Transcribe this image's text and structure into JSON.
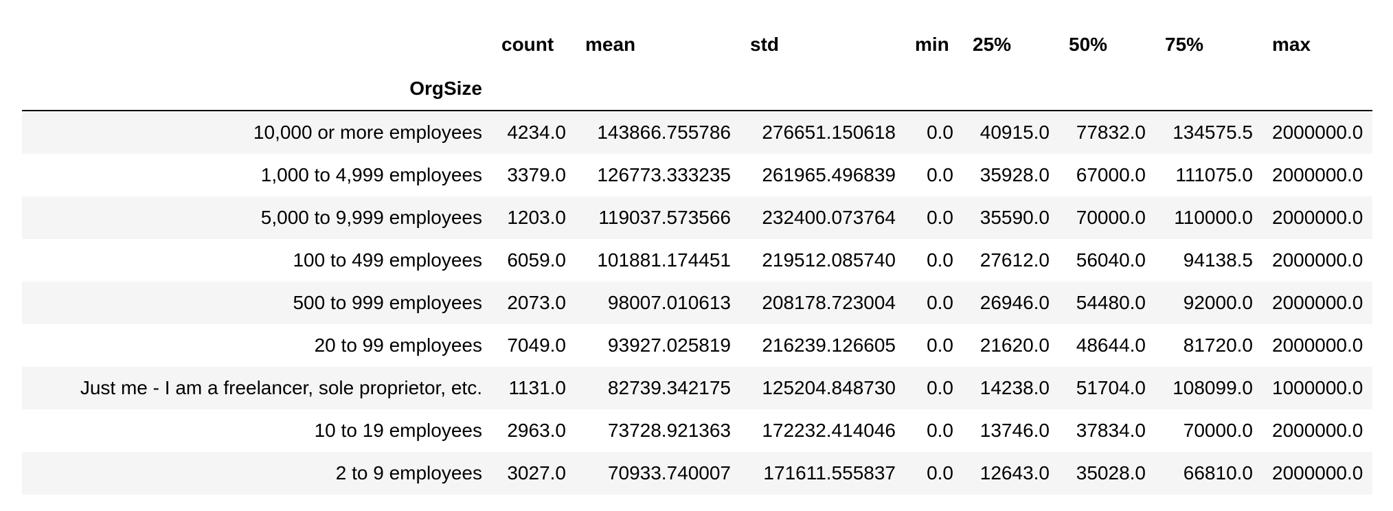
{
  "table": {
    "index_name": "OrgSize",
    "columns": [
      "count",
      "mean",
      "std",
      "min",
      "25%",
      "50%",
      "75%",
      "max"
    ],
    "rows": [
      {
        "label": "10,000 or more employees",
        "values": [
          "4234.0",
          "143866.755786",
          "276651.150618",
          "0.0",
          "40915.0",
          "77832.0",
          "134575.5",
          "2000000.0"
        ]
      },
      {
        "label": "1,000 to 4,999 employees",
        "values": [
          "3379.0",
          "126773.333235",
          "261965.496839",
          "0.0",
          "35928.0",
          "67000.0",
          "111075.0",
          "2000000.0"
        ]
      },
      {
        "label": "5,000 to 9,999 employees",
        "values": [
          "1203.0",
          "119037.573566",
          "232400.073764",
          "0.0",
          "35590.0",
          "70000.0",
          "110000.0",
          "2000000.0"
        ]
      },
      {
        "label": "100 to 499 employees",
        "values": [
          "6059.0",
          "101881.174451",
          "219512.085740",
          "0.0",
          "27612.0",
          "56040.0",
          "94138.5",
          "2000000.0"
        ]
      },
      {
        "label": "500 to 999 employees",
        "values": [
          "2073.0",
          "98007.010613",
          "208178.723004",
          "0.0",
          "26946.0",
          "54480.0",
          "92000.0",
          "2000000.0"
        ]
      },
      {
        "label": "20 to 99 employees",
        "values": [
          "7049.0",
          "93927.025819",
          "216239.126605",
          "0.0",
          "21620.0",
          "48644.0",
          "81720.0",
          "2000000.0"
        ]
      },
      {
        "label": "Just me - I am a freelancer, sole proprietor, etc.",
        "values": [
          "1131.0",
          "82739.342175",
          "125204.848730",
          "0.0",
          "14238.0",
          "51704.0",
          "108099.0",
          "1000000.0"
        ]
      },
      {
        "label": "10 to 19 employees",
        "values": [
          "2963.0",
          "73728.921363",
          "172232.414046",
          "0.0",
          "13746.0",
          "37834.0",
          "70000.0",
          "2000000.0"
        ]
      },
      {
        "label": "2 to 9 employees",
        "values": [
          "3027.0",
          "70933.740007",
          "171611.555837",
          "0.0",
          "12643.0",
          "35028.0",
          "66810.0",
          "2000000.0"
        ]
      }
    ]
  }
}
